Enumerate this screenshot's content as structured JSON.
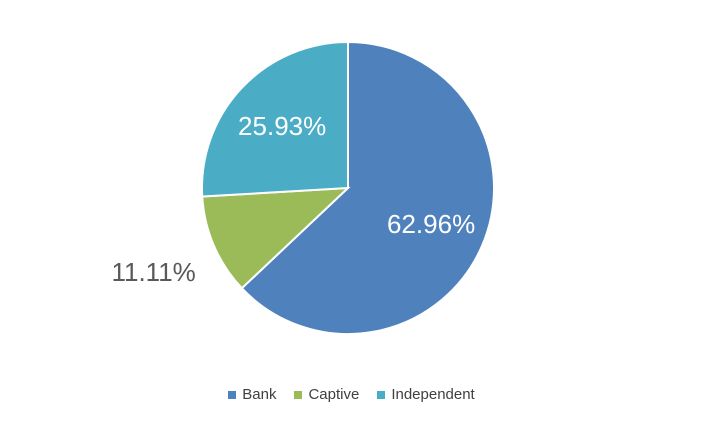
{
  "chart_data": {
    "type": "pie",
    "title": "",
    "categories": [
      "Bank",
      "Captive",
      "Independent"
    ],
    "values": [
      62.96,
      11.11,
      25.93
    ],
    "labels": [
      "62.96%",
      "11.11%",
      "25.93%"
    ],
    "colors": [
      "#4F81BD",
      "#9BBB59",
      "#4BACC6"
    ],
    "label_colors": [
      "#FFFFFF",
      "#595959",
      "#FFFFFF"
    ],
    "legend_position": "bottom"
  }
}
